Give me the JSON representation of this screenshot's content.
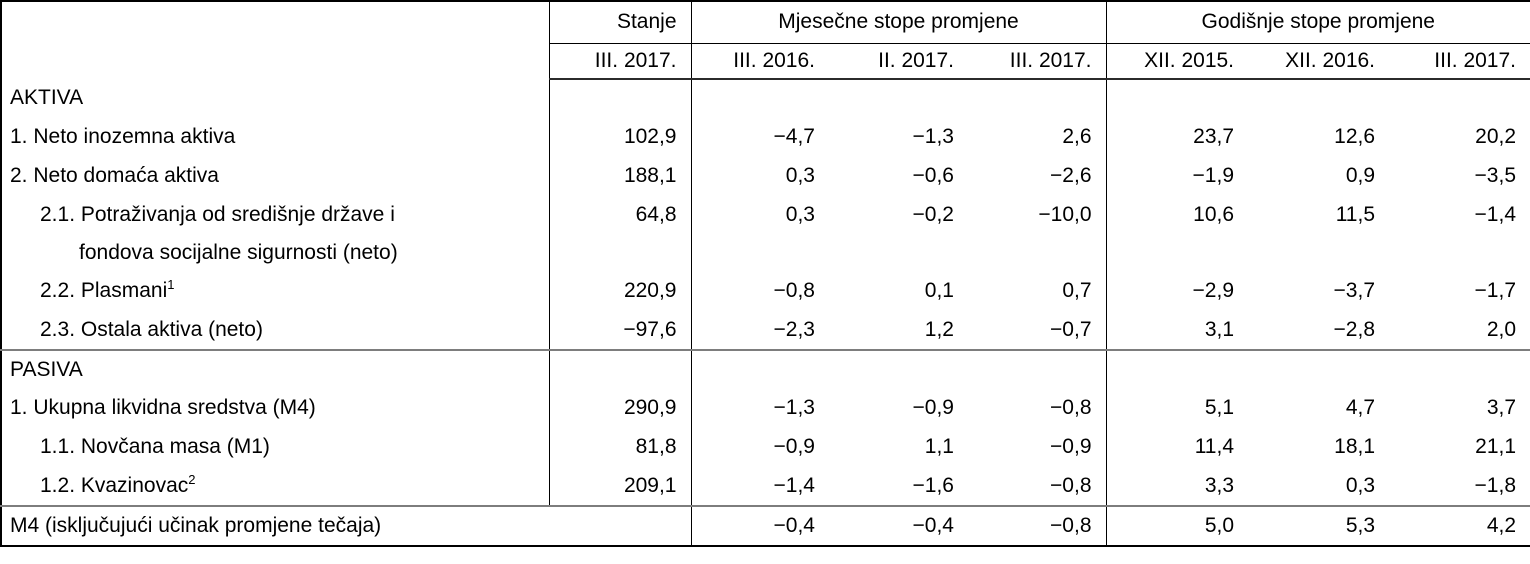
{
  "table": {
    "header": {
      "corner": "",
      "stanje_label": "Stanje",
      "monthly_group_label": "Mjesečne stope promjene",
      "annual_group_label": "Godišnje stope promjene",
      "subheaders": {
        "stanje": "III. 2017.",
        "monthly": [
          "III. 2016.",
          "II. 2017.",
          "III. 2017."
        ],
        "annual": [
          "XII. 2015.",
          "XII. 2016.",
          "III. 2017."
        ]
      }
    },
    "rows": [
      {
        "kind": "section",
        "label": "AKTIVA"
      },
      {
        "kind": "data",
        "indent": false,
        "label": "1. Neto inozemna aktiva",
        "stanje": "102,9",
        "monthly": [
          "−4,7",
          "−1,3",
          "2,6"
        ],
        "annual": [
          "23,7",
          "12,6",
          "20,2"
        ]
      },
      {
        "kind": "data",
        "indent": false,
        "label": "2. Neto domaća aktiva",
        "stanje": "188,1",
        "monthly": [
          "0,3",
          "−0,6",
          "−2,6"
        ],
        "annual": [
          "−1,9",
          "0,9",
          "−3,5"
        ]
      },
      {
        "kind": "data",
        "indent": true,
        "label": "2.1. Potraživanja od središnje države i",
        "label2": "fondova socijalne sigurnosti (neto)",
        "stanje": "64,8",
        "monthly": [
          "0,3",
          "−0,2",
          "−10,0"
        ],
        "annual": [
          "10,6",
          "11,5",
          "−1,4"
        ]
      },
      {
        "kind": "data",
        "indent": true,
        "label": "2.2. Plasmani",
        "sup": "1",
        "stanje": "220,9",
        "monthly": [
          "−0,8",
          "0,1",
          "0,7"
        ],
        "annual": [
          "−2,9",
          "−3,7",
          "−1,7"
        ]
      },
      {
        "kind": "data",
        "indent": true,
        "label": "2.3. Ostala aktiva (neto)",
        "stanje": "−97,6",
        "monthly": [
          "−2,3",
          "1,2",
          "−0,7"
        ],
        "annual": [
          "3,1",
          "−2,8",
          "2,0"
        ]
      },
      {
        "kind": "section",
        "separator_above": true,
        "label": "PASIVA"
      },
      {
        "kind": "data",
        "indent": false,
        "label": "1. Ukupna likvidna sredstva (M4)",
        "stanje": "290,9",
        "monthly": [
          "−1,3",
          "−0,9",
          "−0,8"
        ],
        "annual": [
          "5,1",
          "4,7",
          "3,7"
        ]
      },
      {
        "kind": "data",
        "indent": true,
        "label": "1.1. Novčana masa (M1)",
        "stanje": "81,8",
        "monthly": [
          "−0,9",
          "1,1",
          "−0,9"
        ],
        "annual": [
          "11,4",
          "18,1",
          "21,1"
        ]
      },
      {
        "kind": "data",
        "indent": true,
        "label": "1.2. Kvazinovac",
        "sup": "2",
        "stanje": "209,1",
        "monthly": [
          "−1,4",
          "−1,6",
          "−0,8"
        ],
        "annual": [
          "3,3",
          "0,3",
          "−1,8"
        ]
      },
      {
        "kind": "footer",
        "separator_above": true,
        "label": "M4 (isključujući učinak promjene tečaja)",
        "monthly": [
          "−0,4",
          "−0,4",
          "−0,8"
        ],
        "annual": [
          "5,0",
          "5,3",
          "4,2"
        ]
      }
    ]
  }
}
